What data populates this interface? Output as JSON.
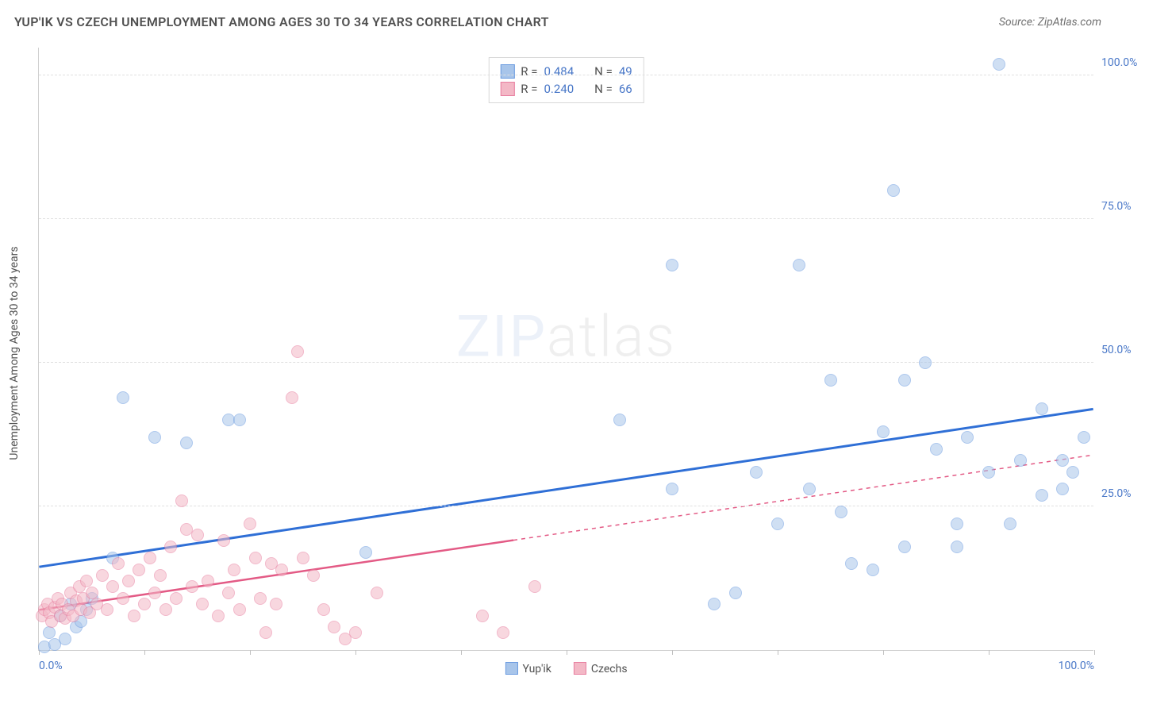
{
  "title": "YUP'IK VS CZECH UNEMPLOYMENT AMONG AGES 30 TO 34 YEARS CORRELATION CHART",
  "source_label": "Source: ZipAtlas.com",
  "y_axis_title": "Unemployment Among Ages 30 to 34 years",
  "watermark_zip": "ZIP",
  "watermark_atlas": "atlas",
  "chart": {
    "type": "scatter",
    "background_color": "#ffffff",
    "grid_color": "#e0e0e0",
    "axis_color": "#d0d0d0",
    "tick_label_color": "#4a78c8",
    "xlim": [
      0,
      100
    ],
    "ylim": [
      0,
      105
    ],
    "ytick_values": [
      25,
      50,
      75,
      100
    ],
    "ytick_labels": [
      "25.0%",
      "50.0%",
      "75.0%",
      "100.0%"
    ],
    "xtick_values": [
      0,
      10,
      20,
      30,
      40,
      50,
      60,
      70,
      80,
      90,
      100
    ],
    "xtick_labels_shown": {
      "0": "0.0%",
      "100": "100.0%"
    },
    "marker_radius": 8,
    "marker_opacity": 0.55,
    "series": [
      {
        "name": "Yup'ik",
        "fill_color": "#a8c5ea",
        "stroke_color": "#6b9be0",
        "correlation_r_label": "R =",
        "correlation_r": "0.484",
        "correlation_n_label": "N =",
        "correlation_n": "49",
        "trend": {
          "color": "#2f6fd6",
          "width": 3,
          "x1": 0,
          "y1": 14.5,
          "x2": 100,
          "y2": 42,
          "dash_extend_from_x": null
        },
        "points": [
          [
            0.5,
            0.5
          ],
          [
            1,
            3
          ],
          [
            1.5,
            1
          ],
          [
            2,
            6
          ],
          [
            2.5,
            2
          ],
          [
            3,
            8
          ],
          [
            3.5,
            4
          ],
          [
            4,
            5
          ],
          [
            4.5,
            7
          ],
          [
            5,
            9
          ],
          [
            7,
            16
          ],
          [
            8,
            44
          ],
          [
            11,
            37
          ],
          [
            14,
            36
          ],
          [
            18,
            40
          ],
          [
            19,
            40
          ],
          [
            31,
            17
          ],
          [
            55,
            40
          ],
          [
            60,
            28
          ],
          [
            60,
            67
          ],
          [
            64,
            8
          ],
          [
            66,
            10
          ],
          [
            68,
            31
          ],
          [
            70,
            22
          ],
          [
            72,
            67
          ],
          [
            73,
            28
          ],
          [
            75,
            47
          ],
          [
            76,
            24
          ],
          [
            77,
            15
          ],
          [
            79,
            14
          ],
          [
            80,
            38
          ],
          [
            81,
            80
          ],
          [
            82,
            47
          ],
          [
            82,
            18
          ],
          [
            84,
            50
          ],
          [
            85,
            35
          ],
          [
            87,
            22
          ],
          [
            87,
            18
          ],
          [
            88,
            37
          ],
          [
            90,
            31
          ],
          [
            91,
            102
          ],
          [
            92,
            22
          ],
          [
            93,
            33
          ],
          [
            95,
            42
          ],
          [
            95,
            27
          ],
          [
            97,
            28
          ],
          [
            97,
            33
          ],
          [
            98,
            31
          ],
          [
            99,
            37
          ]
        ]
      },
      {
        "name": "Czechs",
        "fill_color": "#f3b8c6",
        "stroke_color": "#e87fa0",
        "correlation_r_label": "R =",
        "correlation_r": "0.240",
        "correlation_n_label": "N =",
        "correlation_n": "66",
        "trend": {
          "color": "#e35a85",
          "width": 2.5,
          "x1": 0,
          "y1": 7,
          "x2": 100,
          "y2": 34,
          "dash_extend_from_x": 45
        },
        "points": [
          [
            0.3,
            6
          ],
          [
            0.5,
            7
          ],
          [
            0.8,
            8
          ],
          [
            1,
            6.5
          ],
          [
            1.2,
            5
          ],
          [
            1.5,
            7.5
          ],
          [
            1.8,
            9
          ],
          [
            2,
            6
          ],
          [
            2.2,
            8
          ],
          [
            2.5,
            5.5
          ],
          [
            2.8,
            7
          ],
          [
            3,
            10
          ],
          [
            3.2,
            6
          ],
          [
            3.5,
            8.5
          ],
          [
            3.8,
            11
          ],
          [
            4,
            7
          ],
          [
            4.2,
            9
          ],
          [
            4.5,
            12
          ],
          [
            4.8,
            6.5
          ],
          [
            5,
            10
          ],
          [
            5.5,
            8
          ],
          [
            6,
            13
          ],
          [
            6.5,
            7
          ],
          [
            7,
            11
          ],
          [
            7.5,
            15
          ],
          [
            8,
            9
          ],
          [
            8.5,
            12
          ],
          [
            9,
            6
          ],
          [
            9.5,
            14
          ],
          [
            10,
            8
          ],
          [
            10.5,
            16
          ],
          [
            11,
            10
          ],
          [
            11.5,
            13
          ],
          [
            12,
            7
          ],
          [
            12.5,
            18
          ],
          [
            13,
            9
          ],
          [
            13.5,
            26
          ],
          [
            14,
            21
          ],
          [
            14.5,
            11
          ],
          [
            15,
            20
          ],
          [
            15.5,
            8
          ],
          [
            16,
            12
          ],
          [
            17,
            6
          ],
          [
            17.5,
            19
          ],
          [
            18,
            10
          ],
          [
            18.5,
            14
          ],
          [
            19,
            7
          ],
          [
            20,
            22
          ],
          [
            20.5,
            16
          ],
          [
            21,
            9
          ],
          [
            21.5,
            3
          ],
          [
            22,
            15
          ],
          [
            22.5,
            8
          ],
          [
            23,
            14
          ],
          [
            24,
            44
          ],
          [
            24.5,
            52
          ],
          [
            25,
            16
          ],
          [
            26,
            13
          ],
          [
            27,
            7
          ],
          [
            28,
            4
          ],
          [
            29,
            2
          ],
          [
            30,
            3
          ],
          [
            32,
            10
          ],
          [
            42,
            6
          ],
          [
            44,
            3
          ],
          [
            47,
            11
          ]
        ]
      }
    ],
    "legend_x": [
      {
        "swatch_fill": "#a8c5ea",
        "swatch_stroke": "#6b9be0",
        "label": "Yup'ik"
      },
      {
        "swatch_fill": "#f3b8c6",
        "swatch_stroke": "#e87fa0",
        "label": "Czechs"
      }
    ]
  }
}
